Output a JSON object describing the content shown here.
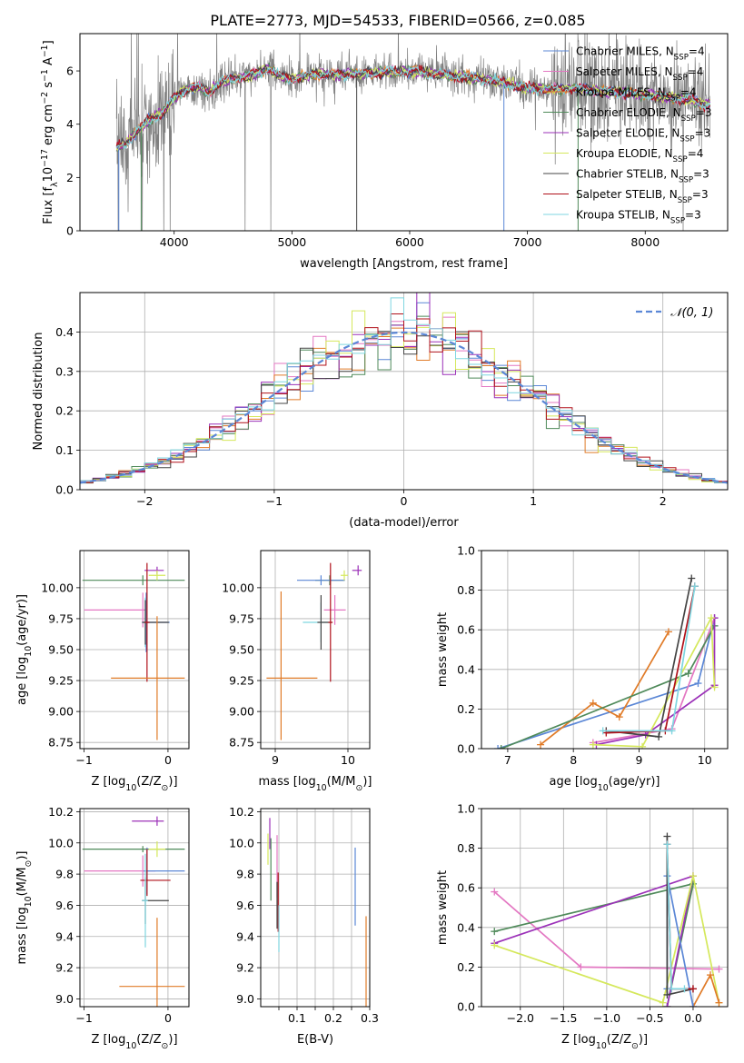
{
  "figure": {
    "title": "PLATE=2773, MJD=54533, FIBERID=0566, z=0.085"
  },
  "chart_data": [
    {
      "id": "spectrum",
      "type": "line",
      "xlabel": "wavelength [Angstrom, rest frame]",
      "ylabel_parts": [
        "Flux [f",
        "λ",
        "10",
        "−17",
        " erg cm",
        "−2",
        " s",
        "−1",
        " A",
        "−1",
        "]"
      ],
      "xlim": [
        3200,
        8700
      ],
      "ylim": [
        0,
        7.4
      ],
      "xticks": [
        4000,
        5000,
        6000,
        7000,
        8000
      ],
      "yticks": [
        0,
        2,
        4,
        6
      ],
      "grid": false,
      "legend_position": "right",
      "legend": [
        {
          "label": "Chabrier MILES, N",
          "sub": "SSP",
          "suffix": "=4",
          "color": "#5b87d6"
        },
        {
          "label": "Salpeter MILES, N",
          "sub": "SSP",
          "suffix": "=4",
          "color": "#e377c2"
        },
        {
          "label": "Kroupa MILES, N",
          "sub": "SSP",
          "suffix": "=4",
          "color": "#e07b28"
        },
        {
          "label": "Chabrier ELODIE, N",
          "sub": "SSP",
          "suffix": "=3",
          "color": "#4f8a5a"
        },
        {
          "label": "Salpeter ELODIE, N",
          "sub": "SSP",
          "suffix": "=3",
          "color": "#9b30b8"
        },
        {
          "label": "Kroupa ELODIE, N",
          "sub": "SSP",
          "suffix": "=4",
          "color": "#d5e85c"
        },
        {
          "label": "Chabrier STELIB, N",
          "sub": "SSP",
          "suffix": "=3",
          "color": "#444444"
        },
        {
          "label": "Salpeter STELIB, N",
          "sub": "SSP",
          "suffix": "=3",
          "color": "#b0111a"
        },
        {
          "label": "Kroupa STELIB, N",
          "sub": "SSP",
          "suffix": "=3",
          "color": "#7fd6e0"
        }
      ],
      "data_color": "#808080",
      "continuum": {
        "x": [
          3500,
          3600,
          3700,
          3800,
          3900,
          4000,
          4100,
          4200,
          4300,
          4400,
          4500,
          4600,
          4700,
          4800,
          4900,
          5000,
          5200,
          5400,
          5600,
          5800,
          6000,
          6200,
          6400,
          6600,
          6800,
          7000,
          7200,
          7400,
          7600,
          7800,
          8000,
          8200,
          8400,
          8500
        ],
        "y": [
          3.1,
          3.3,
          3.8,
          4.2,
          4.4,
          5.0,
          5.3,
          5.4,
          5.2,
          5.6,
          5.7,
          5.8,
          5.9,
          6.1,
          5.8,
          5.7,
          5.9,
          5.85,
          5.9,
          5.95,
          6.0,
          5.9,
          5.8,
          5.7,
          5.55,
          5.35,
          5.3,
          5.35,
          5.25,
          5.2,
          5.1,
          5.0,
          4.9,
          4.75
        ]
      }
    },
    {
      "id": "residuals",
      "type": "histogram",
      "xlabel": "(data-model)/error",
      "ylabel": "Normed distribution",
      "xlim": [
        -2.5,
        2.5
      ],
      "ylim": [
        0,
        0.5
      ],
      "xticks": [
        -2,
        -1,
        0,
        1,
        2
      ],
      "yticks": [
        0.0,
        0.1,
        0.2,
        0.3,
        0.4
      ],
      "grid": true,
      "legend_position": "top-right",
      "legend": [
        {
          "label": "𝒩(0, 1)",
          "color": "#5b87d6"
        }
      ],
      "bin_width": 0.1,
      "reference_curve": "standard normal"
    },
    {
      "id": "age-vs-Z",
      "type": "errorbar",
      "xlabel_parts": [
        "Z [log",
        "10",
        "(Z/Z",
        "⊙",
        ")]"
      ],
      "ylabel_parts": [
        "age  [log",
        "10",
        "(age/yr)]"
      ],
      "xlim": [
        -1.05,
        0.25
      ],
      "ylim": [
        8.7,
        10.3
      ],
      "xticks": [
        -1,
        0
      ],
      "yticks": [
        8.75,
        9.0,
        9.25,
        9.5,
        9.75,
        10.0
      ],
      "grid": true,
      "points": [
        {
          "x": -0.3,
          "y": 10.06,
          "xerr": [
            0.72,
            0.5
          ],
          "yerr": [
            0.04,
            0.04
          ],
          "color": "#4f8a5a"
        },
        {
          "x": -0.13,
          "y": 10.14,
          "xerr": [
            0.15,
            0.08
          ],
          "yerr": [
            0.03,
            0.03
          ],
          "color": "#9b30b8"
        },
        {
          "x": -0.13,
          "y": 10.1,
          "xerr": [
            0.1,
            0.1
          ],
          "yerr": [
            0.04,
            0.04
          ],
          "color": "#d5e85c"
        },
        {
          "x": -0.3,
          "y": 9.82,
          "xerr": [
            0.7,
            0.05
          ],
          "yerr": [
            0.14,
            0.14
          ],
          "color": "#e377c2"
        },
        {
          "x": -0.26,
          "y": 9.72,
          "xerr": [
            0.04,
            0.28
          ],
          "yerr": [
            0.24,
            0.24
          ],
          "color": "#5b87d6"
        },
        {
          "x": -0.27,
          "y": 9.72,
          "xerr": [
            0.04,
            0.03
          ],
          "yerr": [
            0.2,
            0.2
          ],
          "color": "#7fd6e0"
        },
        {
          "x": -0.27,
          "y": 9.72,
          "xerr": [
            0.04,
            0.28
          ],
          "yerr": [
            0.18,
            0.18
          ],
          "color": "#444444"
        },
        {
          "x": -0.25,
          "y": 9.72,
          "xerr": [
            0.03,
            0.03
          ],
          "yerr": [
            0.48,
            0.48
          ],
          "color": "#b0111a"
        },
        {
          "x": -0.13,
          "y": 9.27,
          "xerr": [
            0.55,
            0.33
          ],
          "yerr": [
            0.5,
            0.5
          ],
          "color": "#e07b28"
        }
      ]
    },
    {
      "id": "age-vs-mass",
      "type": "errorbar",
      "xlabel_parts": [
        "mass [log",
        "10",
        "(M/M",
        "⊙",
        ")]"
      ],
      "ylabel_parts": [],
      "xlim": [
        8.8,
        10.3
      ],
      "ylim": [
        8.7,
        10.3
      ],
      "xticks": [
        9,
        10
      ],
      "yticks": [
        8.75,
        9.0,
        9.25,
        9.5,
        9.75,
        10.0
      ],
      "grid": true,
      "points": [
        {
          "x": 9.75,
          "y": 10.06,
          "xerr": [
            0.2,
            0.2
          ],
          "yerr": [
            0.04,
            0.04
          ],
          "color": "#4f8a5a"
        },
        {
          "x": 9.63,
          "y": 10.06,
          "xerr": [
            0.33,
            0.33
          ],
          "yerr": [
            0.04,
            0.04
          ],
          "color": "#5b87d6"
        },
        {
          "x": 10.14,
          "y": 10.14,
          "xerr": [
            0.08,
            0.05
          ],
          "yerr": [
            0.04,
            0.04
          ],
          "color": "#9b30b8"
        },
        {
          "x": 9.95,
          "y": 10.1,
          "xerr": [
            0.05,
            0.05
          ],
          "yerr": [
            0.04,
            0.04
          ],
          "color": "#d5e85c"
        },
        {
          "x": 9.82,
          "y": 9.82,
          "xerr": [
            0.15,
            0.15
          ],
          "yerr": [
            0.12,
            0.12
          ],
          "color": "#e377c2"
        },
        {
          "x": 9.63,
          "y": 9.72,
          "xerr": [
            0.25,
            0.1
          ],
          "yerr": [
            0.16,
            0.16
          ],
          "color": "#7fd6e0"
        },
        {
          "x": 9.63,
          "y": 9.72,
          "xerr": [
            0.05,
            0.15
          ],
          "yerr": [
            0.22,
            0.22
          ],
          "color": "#444444"
        },
        {
          "x": 9.76,
          "y": 9.72,
          "xerr": [
            0.03,
            0.03
          ],
          "yerr": [
            0.48,
            0.48
          ],
          "color": "#b0111a"
        },
        {
          "x": 9.08,
          "y": 9.27,
          "xerr": [
            0.2,
            0.5
          ],
          "yerr": [
            0.5,
            0.7
          ],
          "color": "#e07b28"
        }
      ]
    },
    {
      "id": "weight-vs-age",
      "type": "line",
      "xlabel_parts": [
        "age  [log",
        "10",
        "(age/yr)]"
      ],
      "ylabel": "mass weight",
      "xlim": [
        6.6,
        10.35
      ],
      "ylim": [
        0,
        1.0
      ],
      "xticks": [
        7,
        8,
        9,
        10
      ],
      "yticks": [
        0.0,
        0.2,
        0.4,
        0.6,
        0.8,
        1.0
      ],
      "grid": true,
      "series": [
        {
          "color": "#5b87d6",
          "x": [
            6.85,
            9.9,
            10.15
          ],
          "y": [
            0.0,
            0.33,
            0.66
          ]
        },
        {
          "color": "#e377c2",
          "x": [
            8.3,
            9.5,
            10.15
          ],
          "y": [
            0.03,
            0.1,
            0.66
          ]
        },
        {
          "color": "#e07b28",
          "x": [
            7.5,
            8.3,
            8.7,
            9.45
          ],
          "y": [
            0.02,
            0.23,
            0.16,
            0.59
          ]
        },
        {
          "color": "#4f8a5a",
          "x": [
            6.9,
            9.75,
            10.15
          ],
          "y": [
            0.0,
            0.38,
            0.62
          ]
        },
        {
          "color": "#9b30b8",
          "x": [
            8.35,
            9.1,
            10.15,
            10.15
          ],
          "y": [
            0.02,
            0.07,
            0.32,
            0.66
          ]
        },
        {
          "color": "#d5e85c",
          "x": [
            8.3,
            9.05,
            10.1,
            10.15
          ],
          "y": [
            0.02,
            0.01,
            0.66,
            0.31
          ]
        },
        {
          "color": "#444444",
          "x": [
            8.5,
            9.3,
            9.8
          ],
          "y": [
            0.09,
            0.06,
            0.86
          ]
        },
        {
          "color": "#b0111a",
          "x": [
            8.5,
            9.4,
            9.85
          ],
          "y": [
            0.08,
            0.09,
            0.82
          ]
        },
        {
          "color": "#7fd6e0",
          "x": [
            8.45,
            9.5,
            9.85
          ],
          "y": [
            0.09,
            0.09,
            0.82
          ]
        }
      ]
    },
    {
      "id": "mass-vs-Z",
      "type": "errorbar",
      "xlabel_parts": [
        "Z [log",
        "10",
        "(Z/Z",
        "⊙",
        ")]"
      ],
      "ylabel_parts": [
        "mass [log",
        "10",
        "(M/M",
        "⊙",
        ")]"
      ],
      "xlim": [
        -1.05,
        0.25
      ],
      "ylim": [
        8.95,
        10.22
      ],
      "xticks": [
        -1,
        0
      ],
      "yticks": [
        9.0,
        9.2,
        9.4,
        9.6,
        9.8,
        10.0,
        10.2
      ],
      "grid": true,
      "points": [
        {
          "x": -0.3,
          "y": 9.96,
          "xerr": [
            0.72,
            0.5
          ],
          "yerr": [
            0.02,
            0.02
          ],
          "color": "#4f8a5a"
        },
        {
          "x": -0.13,
          "y": 10.14,
          "xerr": [
            0.3,
            0.08
          ],
          "yerr": [
            0.03,
            0.03
          ],
          "color": "#9b30b8"
        },
        {
          "x": -0.13,
          "y": 9.96,
          "xerr": [
            0.1,
            0.1
          ],
          "yerr": [
            0.05,
            0.05
          ],
          "color": "#d5e85c"
        },
        {
          "x": -0.3,
          "y": 9.82,
          "xerr": [
            0.7,
            0.15
          ],
          "yerr": [
            0.1,
            0.1
          ],
          "color": "#e377c2"
        },
        {
          "x": -0.25,
          "y": 9.82,
          "xerr": [
            0.04,
            0.45
          ],
          "yerr": [
            0.15,
            0.15
          ],
          "color": "#5b87d6"
        },
        {
          "x": -0.25,
          "y": 9.76,
          "xerr": [
            0.08,
            0.28
          ],
          "yerr": [
            0.1,
            0.2
          ],
          "color": "#b0111a"
        },
        {
          "x": -0.27,
          "y": 9.63,
          "xerr": [
            0.04,
            0.28
          ],
          "yerr": [
            0.15,
            0.15
          ],
          "color": "#444444"
        },
        {
          "x": -0.27,
          "y": 9.63,
          "xerr": [
            0.04,
            0.03
          ],
          "yerr": [
            0.3,
            0.3
          ],
          "color": "#7fd6e0"
        },
        {
          "x": -0.13,
          "y": 9.08,
          "xerr": [
            0.45,
            0.33
          ],
          "yerr": [
            0.15,
            0.44
          ],
          "color": "#e07b28"
        }
      ]
    },
    {
      "id": "mass-vs-EBV",
      "type": "errorbar",
      "xlabel": "E(B-V)",
      "xlim": [
        0.0,
        0.3
      ],
      "ylim": [
        8.95,
        10.22
      ],
      "xticks": [
        0.05,
        0.1,
        0.15,
        0.2,
        0.25,
        0.3
      ],
      "xtick_labels": [
        "0.1",
        "0.2",
        "0.3"
      ],
      "xtick_label_values": [
        0.1,
        0.2,
        0.3
      ],
      "yticks": [
        9.0,
        9.2,
        9.4,
        9.6,
        9.8,
        10.0,
        10.2
      ],
      "grid": true,
      "points": [
        {
          "x": 0.025,
          "y": 10.06,
          "yerr": [
            0.1,
            0.1
          ],
          "color": "#9b30b8"
        },
        {
          "x": 0.02,
          "y": 9.96,
          "yerr": [
            0.1,
            0.1
          ],
          "color": "#d5e85c"
        },
        {
          "x": 0.028,
          "y": 9.83,
          "yerr": [
            0.2,
            0.2
          ],
          "color": "#4f8a5a"
        },
        {
          "x": 0.045,
          "y": 9.85,
          "yerr": [
            0.2,
            0.2
          ],
          "color": "#e377c2"
        },
        {
          "x": 0.048,
          "y": 9.62,
          "yerr": [
            0.19,
            0.19
          ],
          "color": "#b0111a"
        },
        {
          "x": 0.045,
          "y": 9.6,
          "yerr": [
            0.15,
            0.15
          ],
          "color": "#444444"
        },
        {
          "x": 0.05,
          "y": 9.45,
          "yerr": [
            0.15,
            0.15
          ],
          "color": "#7fd6e0"
        },
        {
          "x": 0.26,
          "y": 9.72,
          "yerr": [
            0.25,
            0.25
          ],
          "color": "#5b87d6"
        },
        {
          "x": 0.29,
          "y": 9.15,
          "yerr": [
            0.2,
            0.38
          ],
          "color": "#e07b28"
        }
      ]
    },
    {
      "id": "weight-vs-Z",
      "type": "line",
      "xlabel_parts": [
        "Z [log",
        "10",
        "(Z/Z",
        "⊙",
        ")]"
      ],
      "ylabel": "mass weight",
      "xlim": [
        -2.45,
        0.4
      ],
      "ylim": [
        0,
        1.0
      ],
      "xticks": [
        -2.0,
        -1.5,
        -1.0,
        -0.5,
        0.0
      ],
      "xtick_labels": [
        "−2.0",
        "−1.5",
        "−1.0",
        "−0.5",
        "0.0"
      ],
      "yticks": [
        0.0,
        0.2,
        0.4,
        0.6,
        0.8,
        1.0
      ],
      "grid": true,
      "series": [
        {
          "color": "#e377c2",
          "x": [
            -2.3,
            -1.3,
            0.3
          ],
          "y": [
            0.58,
            0.2,
            0.19
          ]
        },
        {
          "color": "#4f8a5a",
          "x": [
            -2.3,
            0.0,
            -0.3
          ],
          "y": [
            0.38,
            0.62,
            0.0
          ]
        },
        {
          "color": "#9b30b8",
          "x": [
            -2.3,
            0.0,
            -0.3
          ],
          "y": [
            0.32,
            0.66,
            0.0
          ]
        },
        {
          "color": "#d5e85c",
          "x": [
            -2.3,
            -0.35,
            0.0,
            0.3
          ],
          "y": [
            0.31,
            0.02,
            0.66,
            0.02
          ]
        },
        {
          "color": "#e07b28",
          "x": [
            0.0,
            0.2,
            0.3
          ],
          "y": [
            0.0,
            0.16,
            0.02
          ]
        },
        {
          "color": "#5b87d6",
          "x": [
            -0.3,
            -0.3,
            0.0
          ],
          "y": [
            0.09,
            0.66,
            0.0
          ]
        },
        {
          "color": "#444444",
          "x": [
            -0.3,
            -0.3,
            0.0
          ],
          "y": [
            0.86,
            0.06,
            0.09
          ]
        },
        {
          "color": "#b0111a",
          "x": [
            -0.3,
            -0.25,
            0.0
          ],
          "y": [
            0.82,
            0.09,
            0.09
          ]
        },
        {
          "color": "#7fd6e0",
          "x": [
            -0.3,
            -0.25,
            -0.1
          ],
          "y": [
            0.82,
            0.09,
            0.09
          ]
        }
      ]
    }
  ]
}
